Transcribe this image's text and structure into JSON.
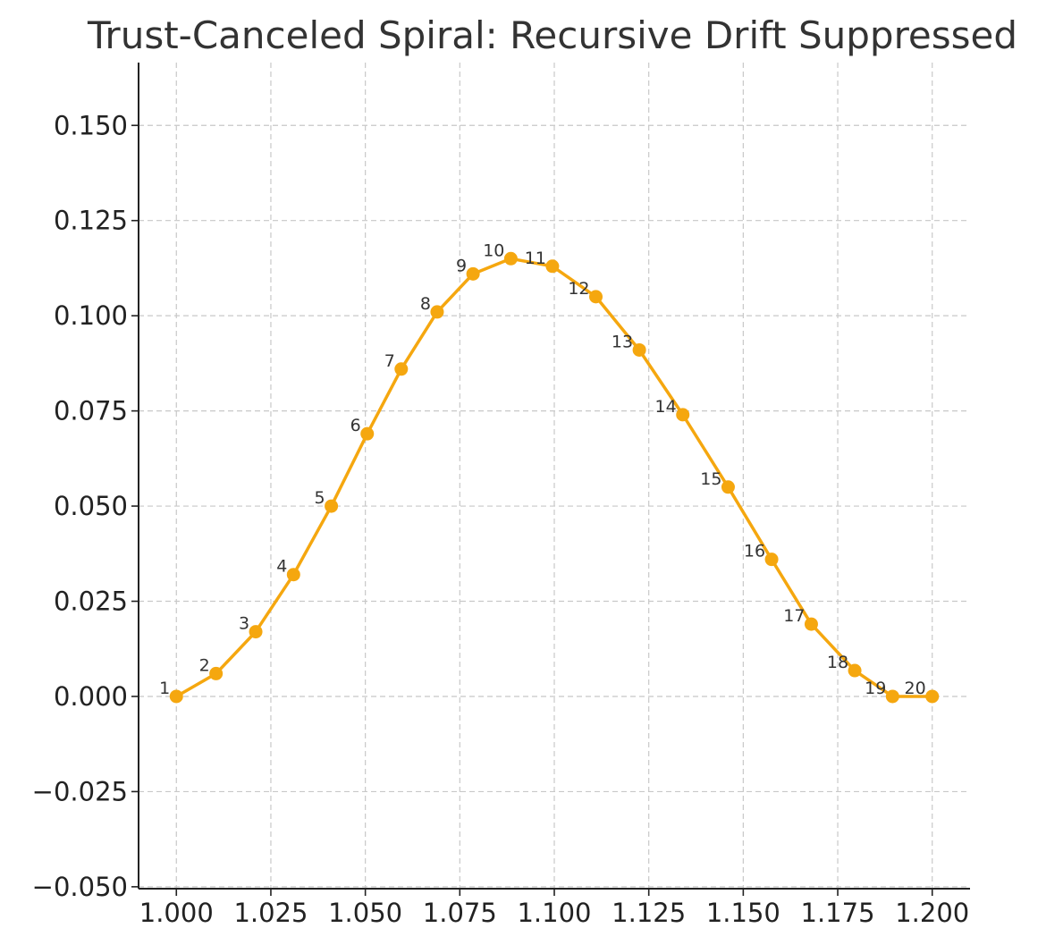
{
  "chart_data": {
    "type": "line",
    "title": "Trust-Canceled Spiral: Recursive Drift Suppressed",
    "xlabel": "",
    "ylabel": "",
    "xlim": [
      0.99,
      1.21
    ],
    "ylim": [
      -0.0505,
      0.1665
    ],
    "xticks": [
      1.0,
      1.025,
      1.05,
      1.075,
      1.1,
      1.125,
      1.15,
      1.175,
      1.2
    ],
    "xtick_labels": [
      "1.000",
      "1.025",
      "1.050",
      "1.075",
      "1.100",
      "1.125",
      "1.150",
      "1.175",
      "1.200"
    ],
    "yticks": [
      -0.05,
      -0.025,
      0.0,
      0.025,
      0.05,
      0.075,
      0.1,
      0.125,
      0.15
    ],
    "ytick_labels": [
      "−0.050",
      "−0.025",
      "0.000",
      "0.025",
      "0.050",
      "0.075",
      "0.100",
      "0.125",
      "0.150"
    ],
    "grid": true,
    "line_color": "#f5a70f",
    "series": [
      {
        "labels": [
          "1",
          "2",
          "3",
          "4",
          "5",
          "6",
          "7",
          "8",
          "9",
          "10",
          "11",
          "12",
          "13",
          "14",
          "15",
          "16",
          "17",
          "18",
          "19",
          "20"
        ],
        "x": [
          1.0,
          1.0105,
          1.021,
          1.031,
          1.041,
          1.0505,
          1.0595,
          1.069,
          1.0785,
          1.0885,
          1.0995,
          1.111,
          1.1225,
          1.134,
          1.146,
          1.1575,
          1.168,
          1.1795,
          1.1895,
          1.2
        ],
        "y": [
          0.0,
          0.006,
          0.017,
          0.032,
          0.05,
          0.069,
          0.086,
          0.101,
          0.111,
          0.115,
          0.113,
          0.105,
          0.091,
          0.074,
          0.055,
          0.036,
          0.019,
          0.0068,
          0.0,
          0.0
        ]
      }
    ]
  }
}
